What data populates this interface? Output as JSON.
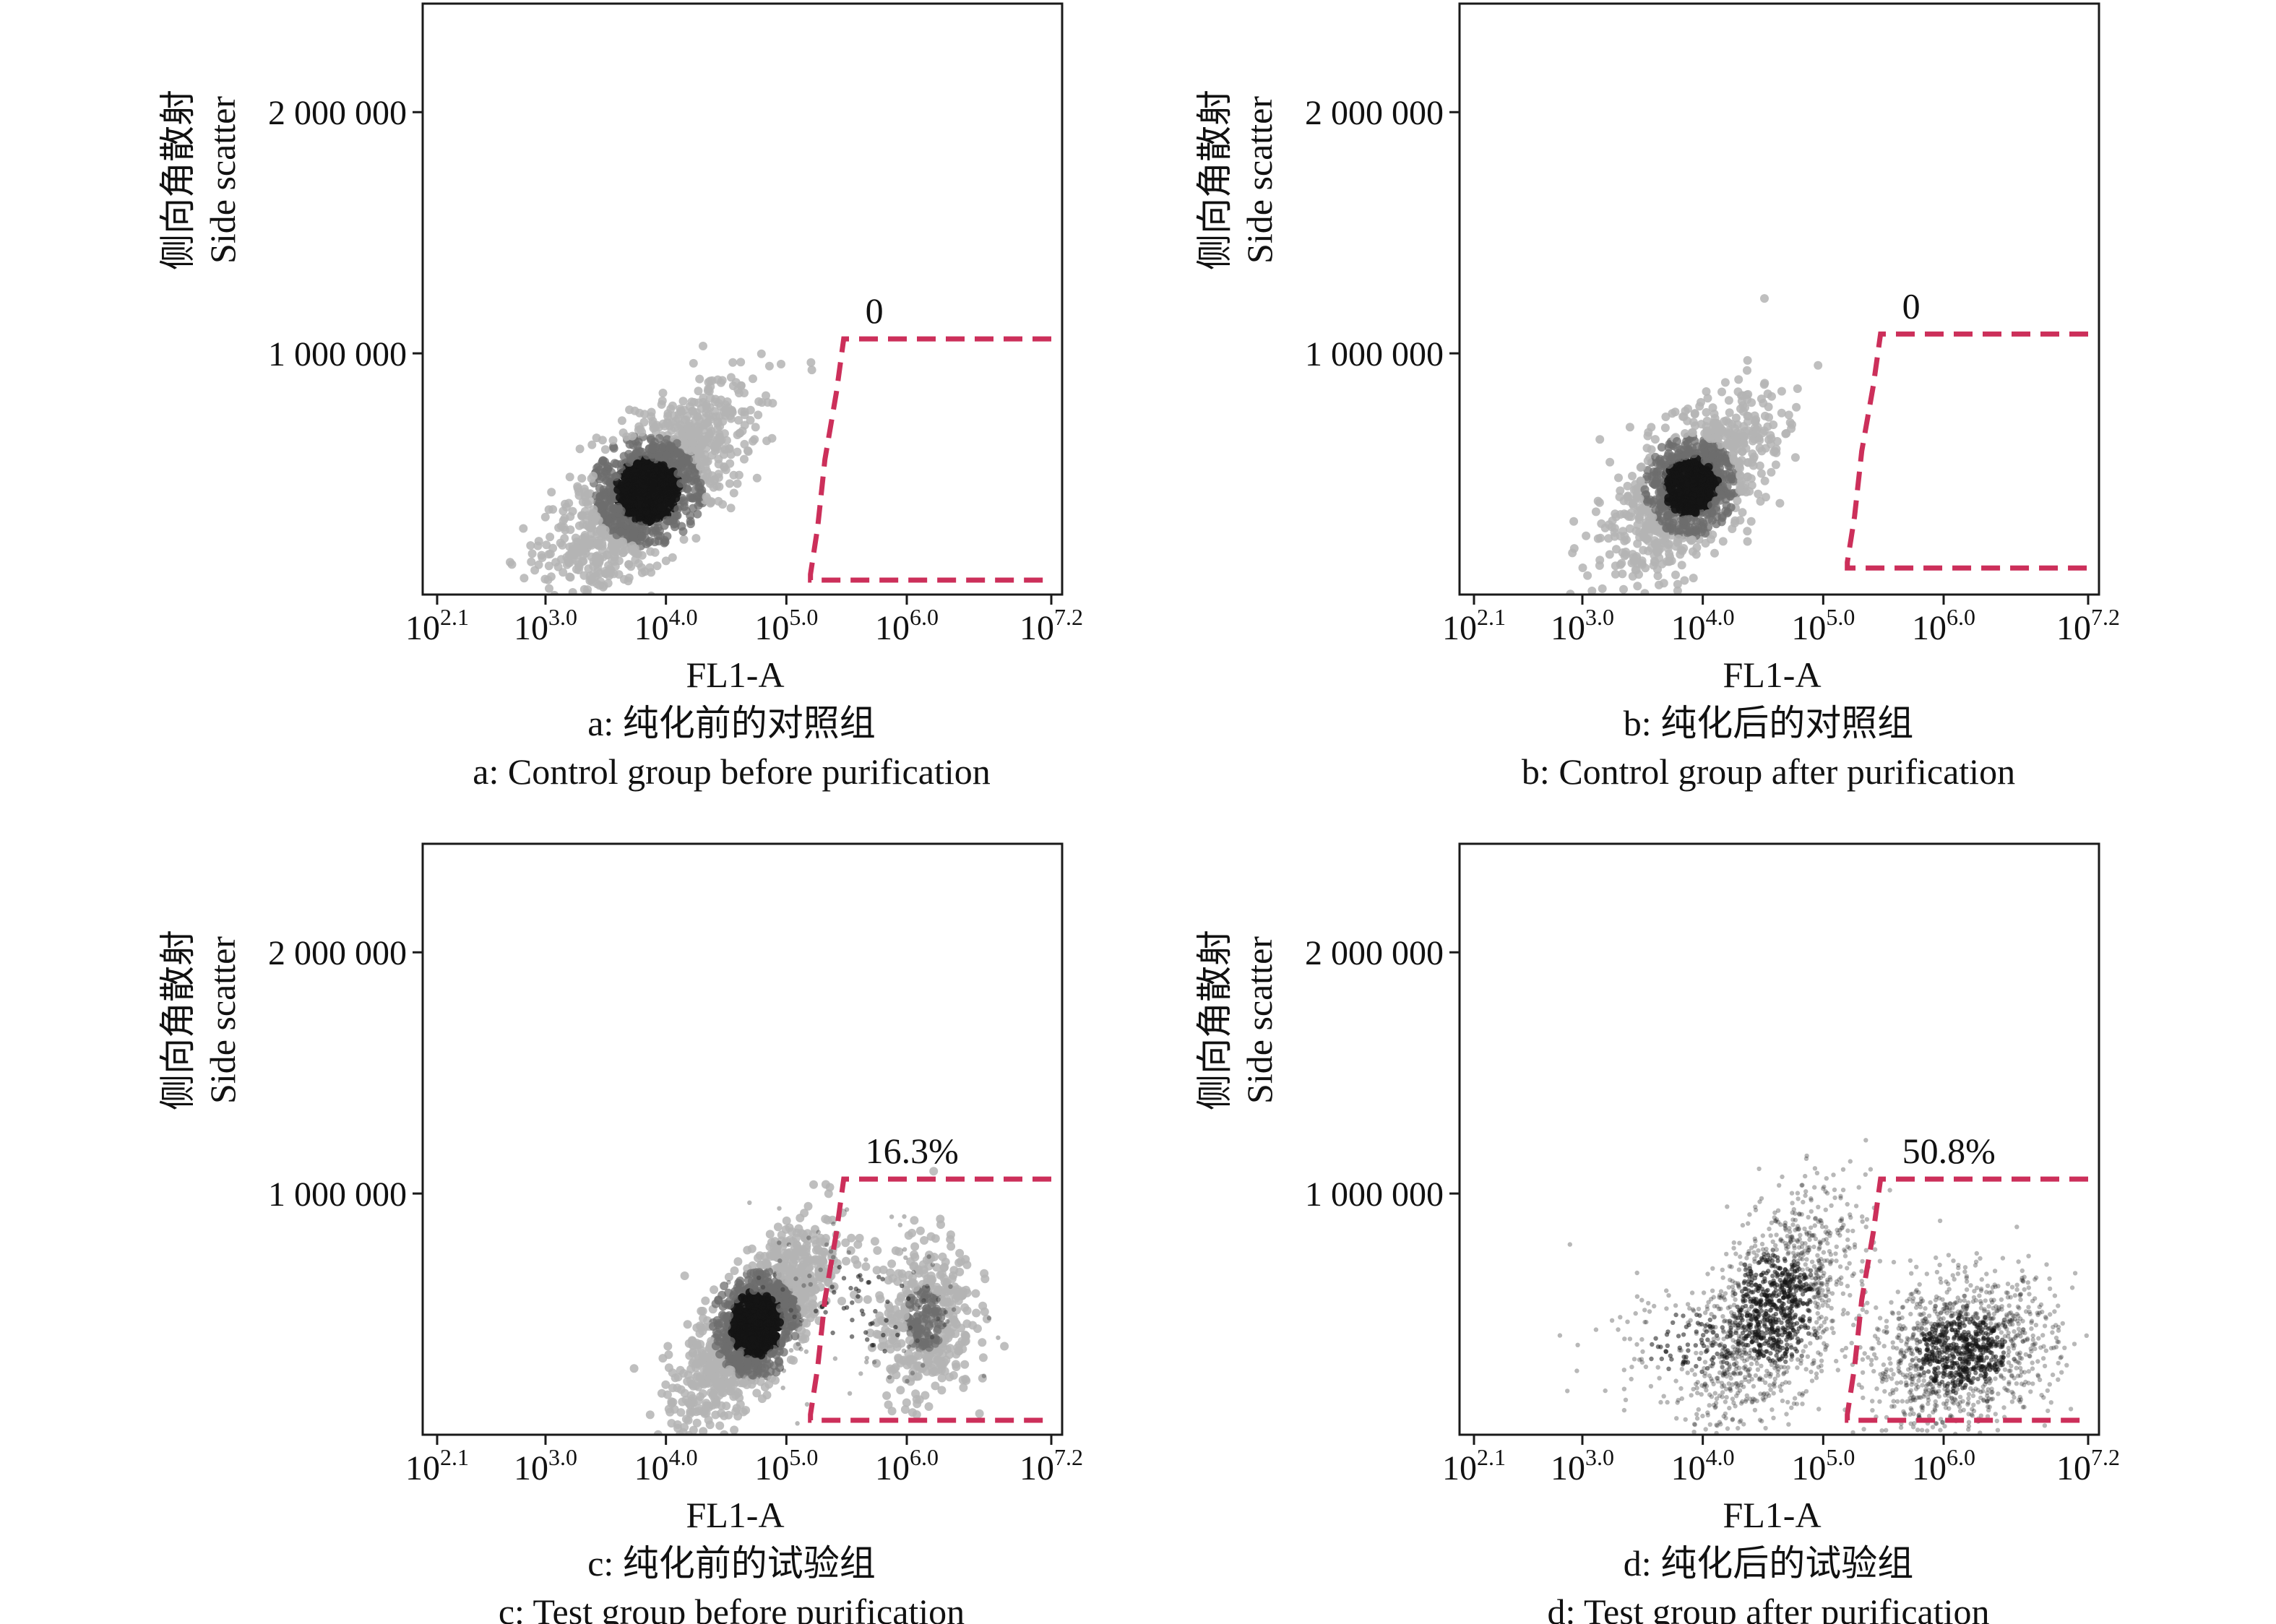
{
  "colors": {
    "gate": "#cc2f5a",
    "axis": "#1a1a1a",
    "density_light": "#b4b4b4",
    "density_mid": "#6e6e6e",
    "density_dark": "#141414"
  },
  "chart_data": [
    {
      "type": "scatter",
      "xlabel": "FL1-A",
      "ylabel_cn": "侧向角散射",
      "ylabel_en": "Side scatter",
      "x_scale": "log10",
      "xlim": [
        2.1,
        7.2
      ],
      "ylim": [
        0,
        2450000
      ],
      "x_ticks": [
        {
          "base": "10",
          "exp": "2.1",
          "value": 2.1
        },
        {
          "base": "10",
          "exp": "3.0",
          "value": 3.0
        },
        {
          "base": "10",
          "exp": "4.0",
          "value": 4.0
        },
        {
          "base": "10",
          "exp": "5.0",
          "value": 5.0
        },
        {
          "base": "10",
          "exp": "6.0",
          "value": 6.0
        },
        {
          "base": "10",
          "exp": "7.2",
          "value": 7.2
        }
      ],
      "y_ticks": [
        {
          "label": "1 000 000",
          "value": 1000000
        },
        {
          "label": "2 000 000",
          "value": 2000000
        }
      ],
      "gate": {
        "label": "0",
        "x_left": 5.2,
        "x_right": 7.2,
        "y_bottom": 60000,
        "y_top": 1060000
      },
      "populations": [
        {
          "x_center": 3.85,
          "y_center": 430000,
          "x_spread": 0.38,
          "y_spread": 190000,
          "correlation": 0.72,
          "count": 1500,
          "density": "dense"
        }
      ],
      "caption_cn": "a: 纯化前的对照组",
      "caption_en": "a: Control group before purification"
    },
    {
      "type": "scatter",
      "xlabel": "FL1-A",
      "ylabel_cn": "侧向角散射",
      "ylabel_en": "Side scatter",
      "x_scale": "log10",
      "xlim": [
        2.1,
        7.2
      ],
      "ylim": [
        0,
        2450000
      ],
      "x_ticks": [
        {
          "base": "10",
          "exp": "2.1",
          "value": 2.1
        },
        {
          "base": "10",
          "exp": "3.0",
          "value": 3.0
        },
        {
          "base": "10",
          "exp": "4.0",
          "value": 4.0
        },
        {
          "base": "10",
          "exp": "5.0",
          "value": 5.0
        },
        {
          "base": "10",
          "exp": "6.0",
          "value": 6.0
        },
        {
          "base": "10",
          "exp": "7.2",
          "value": 7.2
        }
      ],
      "y_ticks": [
        {
          "label": "1 000 000",
          "value": 1000000
        },
        {
          "label": "2 000 000",
          "value": 2000000
        }
      ],
      "gate": {
        "label": "0",
        "x_left": 5.2,
        "x_right": 7.2,
        "y_bottom": 110000,
        "y_top": 1080000
      },
      "populations": [
        {
          "x_center": 3.9,
          "y_center": 450000,
          "x_spread": 0.32,
          "y_spread": 170000,
          "correlation": 0.6,
          "count": 1100,
          "density": "dense"
        }
      ],
      "caption_cn": "b: 纯化后的对照组",
      "caption_en": "b: Control group after purification"
    },
    {
      "type": "scatter",
      "xlabel": "FL1-A",
      "ylabel_cn": "侧向角散射",
      "ylabel_en": "Side scatter",
      "x_scale": "log10",
      "xlim": [
        2.1,
        7.2
      ],
      "ylim": [
        0,
        2450000
      ],
      "x_ticks": [
        {
          "base": "10",
          "exp": "2.1",
          "value": 2.1
        },
        {
          "base": "10",
          "exp": "3.0",
          "value": 3.0
        },
        {
          "base": "10",
          "exp": "4.0",
          "value": 4.0
        },
        {
          "base": "10",
          "exp": "5.0",
          "value": 5.0
        },
        {
          "base": "10",
          "exp": "6.0",
          "value": 6.0
        },
        {
          "base": "10",
          "exp": "7.2",
          "value": 7.2
        }
      ],
      "y_ticks": [
        {
          "label": "1 000 000",
          "value": 1000000
        },
        {
          "label": "2 000 000",
          "value": 2000000
        }
      ],
      "gate": {
        "label": "16.3%",
        "x_left": 5.2,
        "x_right": 7.2,
        "y_bottom": 60000,
        "y_top": 1060000
      },
      "populations": [
        {
          "x_center": 4.75,
          "y_center": 460000,
          "x_spread": 0.3,
          "y_spread": 190000,
          "correlation": 0.72,
          "count": 1300,
          "density": "dense"
        },
        {
          "x_center": 6.15,
          "y_center": 480000,
          "x_spread": 0.2,
          "y_spread": 170000,
          "correlation": 0.1,
          "count": 450,
          "density": "light"
        },
        {
          "x_center": 5.6,
          "y_center": 520000,
          "x_spread": 0.45,
          "y_spread": 200000,
          "correlation": 0.0,
          "count": 120,
          "density": "sparse"
        }
      ],
      "caption_cn": "c: 纯化前的试验组",
      "caption_en": "c: Test group before purification"
    },
    {
      "type": "scatter",
      "xlabel": "FL1-A",
      "ylabel_cn": "侧向角散射",
      "ylabel_en": "Side scatter",
      "x_scale": "log10",
      "xlim": [
        2.1,
        7.2
      ],
      "ylim": [
        0,
        2450000
      ],
      "x_ticks": [
        {
          "base": "10",
          "exp": "2.1",
          "value": 2.1
        },
        {
          "base": "10",
          "exp": "3.0",
          "value": 3.0
        },
        {
          "base": "10",
          "exp": "4.0",
          "value": 4.0
        },
        {
          "base": "10",
          "exp": "5.0",
          "value": 5.0
        },
        {
          "base": "10",
          "exp": "6.0",
          "value": 6.0
        },
        {
          "base": "10",
          "exp": "7.2",
          "value": 7.2
        }
      ],
      "y_ticks": [
        {
          "label": "1 000 000",
          "value": 1000000
        },
        {
          "label": "2 000 000",
          "value": 2000000
        }
      ],
      "gate": {
        "label": "50.8%",
        "x_left": 5.2,
        "x_right": 7.2,
        "y_bottom": 60000,
        "y_top": 1060000
      },
      "populations": [
        {
          "x_center": 4.6,
          "y_center": 520000,
          "x_spread": 0.32,
          "y_spread": 230000,
          "correlation": 0.55,
          "count": 1300,
          "density": "sparse"
        },
        {
          "x_center": 6.15,
          "y_center": 340000,
          "x_spread": 0.38,
          "y_spread": 150000,
          "correlation": 0.2,
          "count": 1300,
          "density": "sparse"
        },
        {
          "x_center": 3.9,
          "y_center": 380000,
          "x_spread": 0.4,
          "y_spread": 130000,
          "correlation": 0.1,
          "count": 200,
          "density": "sparse"
        },
        {
          "x_center": 2.9,
          "y_center": 800000,
          "x_spread": 0.01,
          "y_spread": 10000,
          "correlation": 0.0,
          "count": 1,
          "density": "sparse"
        }
      ],
      "caption_cn": "d: 纯化后的试验组",
      "caption_en": "d: Test group after purification"
    }
  ]
}
